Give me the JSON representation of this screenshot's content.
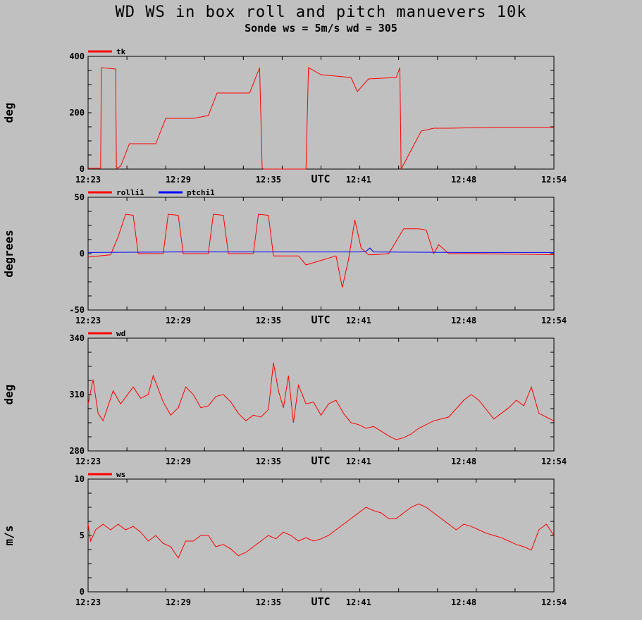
{
  "title": "WD WS in box roll and pitch manuevers 10k",
  "subtitle": "Sonde ws = 5m/s wd = 305",
  "colors": {
    "background": "#c0c0c0",
    "red": "#ff0000",
    "blue": "#0000ff"
  },
  "chart_data": [
    {
      "type": "line",
      "ylabel": "deg",
      "xlabel": "UTC",
      "x_ticks": [
        "12:23",
        "12:29",
        "12:35",
        "12:41",
        "12:48",
        "12:54"
      ],
      "xlim": [
        "12:23",
        "12:54"
      ],
      "ylim": [
        0,
        400
      ],
      "y_ticks": [
        "0",
        "200",
        "400"
      ],
      "grid": false,
      "legend_position": "top-left",
      "series": [
        {
          "name": "tk",
          "color": "#ff0000",
          "x": [
            "12:23:00",
            "12:23:50",
            "12:23:53",
            "12:24:50",
            "12:24:53",
            "12:25:10",
            "12:25:45",
            "12:27:30",
            "12:28:10",
            "12:28:30",
            "12:30:00",
            "12:31:00",
            "12:31:35",
            "12:33:00",
            "12:33:45",
            "12:34:25",
            "12:34:35",
            "12:34:40",
            "12:37:30",
            "12:37:40",
            "12:38:30",
            "12:39:30",
            "12:40:30",
            "12:40:55",
            "12:41:40",
            "12:43:30",
            "12:43:45",
            "12:43:50",
            "12:45:10",
            "12:46:00",
            "12:47:00",
            "12:50:00",
            "12:54:00"
          ],
          "values": [
            3,
            3,
            360,
            355,
            2,
            10,
            90,
            90,
            180,
            180,
            180,
            190,
            270,
            270,
            270,
            360,
            5,
            0,
            0,
            360,
            335,
            330,
            325,
            275,
            320,
            325,
            360,
            0,
            135,
            145,
            145,
            148,
            148
          ]
        }
      ]
    },
    {
      "type": "line",
      "ylabel": "degrees",
      "xlabel": "UTC",
      "x_ticks": [
        "12:23",
        "12:29",
        "12:35",
        "12:41",
        "12:48",
        "12:54"
      ],
      "xlim": [
        "12:23",
        "12:54"
      ],
      "ylim": [
        -50,
        50
      ],
      "y_ticks": [
        "-50",
        "0",
        "50"
      ],
      "grid": false,
      "legend_position": "top-left",
      "series": [
        {
          "name": "rolli1",
          "color": "#ff0000",
          "x": [
            "12:23:00",
            "12:24:30",
            "12:25:00",
            "12:25:30",
            "12:26:00",
            "12:26:20",
            "12:28:00",
            "12:28:20",
            "12:29:00",
            "12:29:20",
            "12:31:00",
            "12:31:20",
            "12:32:00",
            "12:32:20",
            "12:34:00",
            "12:34:20",
            "12:35:00",
            "12:35:20",
            "12:37:00",
            "12:37:30",
            "12:38:30",
            "12:39:30",
            "12:39:55",
            "12:40:20",
            "12:40:45",
            "12:41:10",
            "12:41:40",
            "12:42:00",
            "12:43:00",
            "12:44:00",
            "12:45:00",
            "12:45:30",
            "12:46:00",
            "12:46:20",
            "12:47:00",
            "12:49:00",
            "12:54:00"
          ],
          "values": [
            -3,
            -1,
            15,
            35,
            34,
            0,
            0,
            35,
            34,
            0,
            0,
            35,
            34,
            0,
            0,
            35,
            34,
            -2,
            -2,
            -10,
            -6,
            -2,
            -30,
            -5,
            30,
            5,
            -1,
            -1,
            0,
            22,
            22,
            21,
            0,
            8,
            0,
            0,
            -1
          ]
        },
        {
          "name": "ptchi1",
          "color": "#0000ff",
          "x": [
            "12:23:00",
            "12:29:00",
            "12:35:00",
            "12:41:00",
            "12:41:30",
            "12:41:45",
            "12:42:00",
            "12:48:00",
            "12:54:00"
          ],
          "values": [
            1,
            1.5,
            1.5,
            1.5,
            2,
            5,
            1.5,
            1,
            1
          ]
        }
      ]
    },
    {
      "type": "line",
      "ylabel": "deg",
      "xlabel": "UTC",
      "x_ticks": [
        "12:23",
        "12:29",
        "12:35",
        "12:41",
        "12:48",
        "12:54"
      ],
      "xlim": [
        "12:23",
        "12:54"
      ],
      "ylim": [
        280,
        340
      ],
      "y_ticks": [
        "280",
        "310",
        "340"
      ],
      "grid": false,
      "legend_position": "top-left",
      "series": [
        {
          "name": "wd",
          "color": "#ff0000",
          "x": [
            "12:23:00",
            "12:23:20",
            "12:23:40",
            "12:24:00",
            "12:24:40",
            "12:25:10",
            "12:26:00",
            "12:26:30",
            "12:27:00",
            "12:27:20",
            "12:28:00",
            "12:28:30",
            "12:29:00",
            "12:29:30",
            "12:30:00",
            "12:30:30",
            "12:31:00",
            "12:31:30",
            "12:32:00",
            "12:32:30",
            "12:33:00",
            "12:33:30",
            "12:34:00",
            "12:34:30",
            "12:35:00",
            "12:35:20",
            "12:35:40",
            "12:36:00",
            "12:36:20",
            "12:36:40",
            "12:37:00",
            "12:37:30",
            "12:38:00",
            "12:38:30",
            "12:39:00",
            "12:39:30",
            "12:40:00",
            "12:40:30",
            "12:41:00",
            "12:41:30",
            "12:42:00",
            "12:43:00",
            "12:43:30",
            "12:44:00",
            "12:44:30",
            "12:45:00",
            "12:46:00",
            "12:47:00",
            "12:48:00",
            "12:48:30",
            "12:49:00",
            "12:50:00",
            "12:51:00",
            "12:51:30",
            "12:52:00",
            "12:52:30",
            "12:53:00",
            "12:53:30",
            "12:54:00"
          ],
          "values": [
            305,
            318,
            300,
            296,
            312,
            305,
            314,
            308,
            310,
            320,
            306,
            299,
            303,
            314,
            310,
            303,
            304,
            309,
            310,
            306,
            300,
            296,
            299,
            298,
            302,
            327,
            312,
            303,
            320,
            295,
            315,
            305,
            306,
            299,
            305,
            307,
            300,
            295,
            294,
            292,
            293,
            288,
            286,
            287,
            289,
            292,
            296,
            298,
            307,
            310,
            307,
            297,
            303,
            307,
            304,
            314,
            300,
            298,
            296
          ]
        }
      ]
    },
    {
      "type": "line",
      "ylabel": "m/s",
      "xlabel": "UTC",
      "x_ticks": [
        "12:23",
        "12:29",
        "12:35",
        "12:41",
        "12:48",
        "12:54"
      ],
      "xlim": [
        "12:23",
        "12:54"
      ],
      "ylim": [
        0,
        10
      ],
      "y_ticks": [
        "0",
        "5",
        "10"
      ],
      "grid": false,
      "legend_position": "top-left",
      "series": [
        {
          "name": "ws",
          "color": "#ff0000",
          "x": [
            "12:23:00",
            "12:23:10",
            "12:23:30",
            "12:24:00",
            "12:24:30",
            "12:25:00",
            "12:25:30",
            "12:26:00",
            "12:26:30",
            "12:27:00",
            "12:27:30",
            "12:28:00",
            "12:28:30",
            "12:29:00",
            "12:29:30",
            "12:30:00",
            "12:30:30",
            "12:31:00",
            "12:31:30",
            "12:32:00",
            "12:32:30",
            "12:33:00",
            "12:33:30",
            "12:34:00",
            "12:34:30",
            "12:35:00",
            "12:35:30",
            "12:36:00",
            "12:36:30",
            "12:37:00",
            "12:37:30",
            "12:38:00",
            "12:38:30",
            "12:39:00",
            "12:39:30",
            "12:40:00",
            "12:40:30",
            "12:41:00",
            "12:41:30",
            "12:42:00",
            "12:42:30",
            "12:43:00",
            "12:43:30",
            "12:44:00",
            "12:44:30",
            "12:45:00",
            "12:45:30",
            "12:46:00",
            "12:46:30",
            "12:47:00",
            "12:47:30",
            "12:48:00",
            "12:48:30",
            "12:49:00",
            "12:49:30",
            "12:50:00",
            "12:50:30",
            "12:51:00",
            "12:51:30",
            "12:52:00",
            "12:52:30",
            "12:53:00",
            "12:53:30",
            "12:54:00"
          ],
          "values": [
            6,
            4.5,
            5.5,
            6,
            5.5,
            6,
            5.5,
            5.8,
            5.3,
            4.5,
            5,
            4.3,
            4,
            3,
            4.5,
            4.5,
            5,
            5,
            4,
            4.2,
            3.8,
            3.2,
            3.5,
            4,
            4.5,
            5,
            4.7,
            5.3,
            5,
            4.5,
            4.8,
            4.5,
            4.7,
            5,
            5.5,
            6,
            6.5,
            7,
            7.5,
            7.2,
            7,
            6.5,
            6.5,
            7,
            7.5,
            7.8,
            7.5,
            7,
            6.5,
            6,
            5.5,
            6,
            5.8,
            5.5,
            5.2,
            5,
            4.8,
            4.5,
            4.2,
            4,
            3.7,
            5.5,
            6,
            5
          ]
        }
      ]
    }
  ]
}
